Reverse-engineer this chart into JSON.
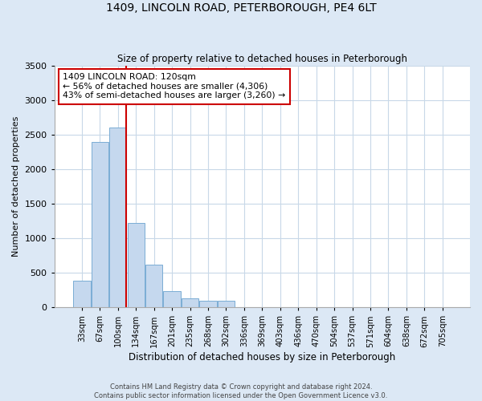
{
  "title": "1409, LINCOLN ROAD, PETERBOROUGH, PE4 6LT",
  "subtitle": "Size of property relative to detached houses in Peterborough",
  "xlabel": "Distribution of detached houses by size in Peterborough",
  "ylabel": "Number of detached properties",
  "footer_line1": "Contains HM Land Registry data © Crown copyright and database right 2024.",
  "footer_line2": "Contains public sector information licensed under the Open Government Licence v3.0.",
  "categories": [
    "33sqm",
    "67sqm",
    "100sqm",
    "134sqm",
    "167sqm",
    "201sqm",
    "235sqm",
    "268sqm",
    "302sqm",
    "336sqm",
    "369sqm",
    "403sqm",
    "436sqm",
    "470sqm",
    "504sqm",
    "537sqm",
    "571sqm",
    "604sqm",
    "638sqm",
    "672sqm",
    "705sqm"
  ],
  "values": [
    390,
    2400,
    2600,
    1220,
    620,
    230,
    130,
    100,
    100,
    0,
    0,
    0,
    0,
    0,
    0,
    0,
    0,
    0,
    0,
    0,
    0
  ],
  "bar_color": "#c5d8ee",
  "bar_edge_color": "#7aadd4",
  "grid_color": "#c8d8e8",
  "background_color": "#dce8f5",
  "plot_bg_color": "#ffffff",
  "ylim": [
    0,
    3500
  ],
  "yticks": [
    0,
    500,
    1000,
    1500,
    2000,
    2500,
    3000,
    3500
  ],
  "annotation_text_line1": "1409 LINCOLN ROAD: 120sqm",
  "annotation_text_line2": "← 56% of detached houses are smaller (4,306)",
  "annotation_text_line3": "43% of semi-detached houses are larger (3,260) →",
  "annotation_box_color": "#ffffff",
  "annotation_border_color": "#cc0000",
  "red_line_color": "#cc0000",
  "red_line_x": 2.47
}
